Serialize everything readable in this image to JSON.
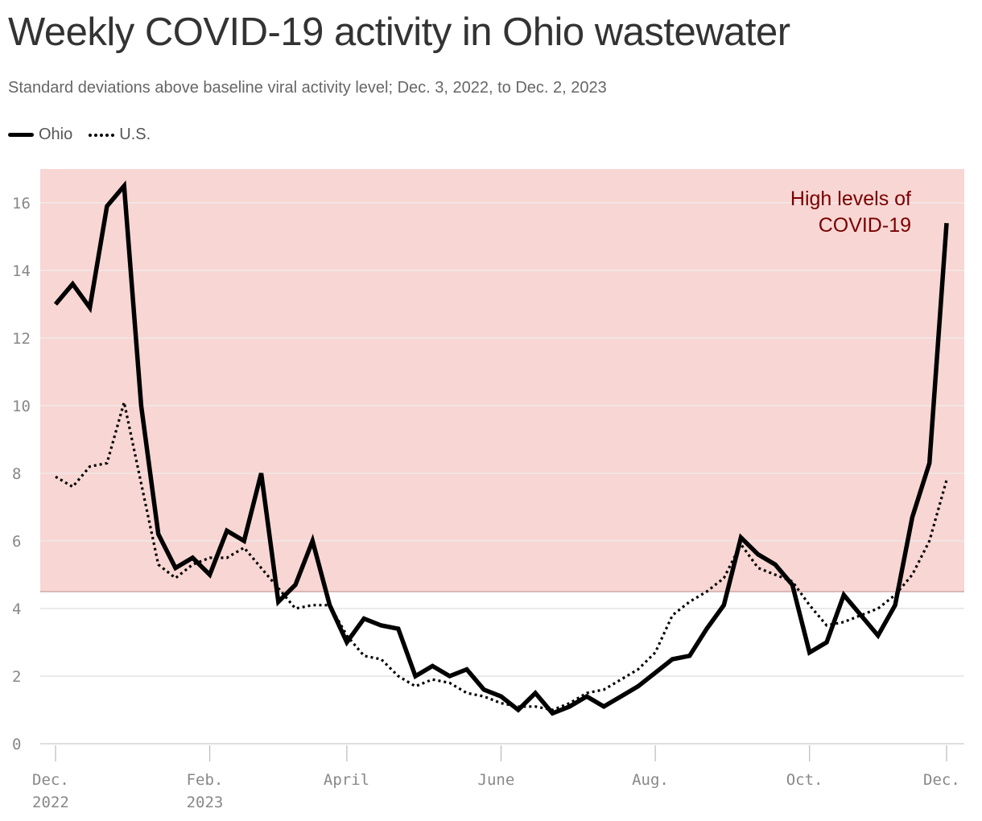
{
  "title": "Weekly COVID-19 activity in Ohio wastewater",
  "subtitle": "Standard deviations above baseline viral activity level; Dec. 3, 2022, to Dec. 2, 2023",
  "legend": [
    {
      "label": "Ohio",
      "style": "solid"
    },
    {
      "label": "U.S.",
      "style": "dotted"
    }
  ],
  "annotation": [
    "High levels of",
    "COVID-19"
  ],
  "colors": {
    "line": "#000000",
    "high_band": "#f7d6d3",
    "grid": "#dddddd",
    "annotation": "#7a0000"
  },
  "chart_data": {
    "type": "line",
    "x_unit": "week starting",
    "x": [
      "2022-12-03",
      "2022-12-10",
      "2022-12-17",
      "2022-12-24",
      "2022-12-31",
      "2023-01-07",
      "2023-01-14",
      "2023-01-21",
      "2023-01-28",
      "2023-02-04",
      "2023-02-11",
      "2023-02-18",
      "2023-02-25",
      "2023-03-04",
      "2023-03-11",
      "2023-03-18",
      "2023-03-25",
      "2023-04-01",
      "2023-04-08",
      "2023-04-15",
      "2023-04-22",
      "2023-04-29",
      "2023-05-06",
      "2023-05-13",
      "2023-05-20",
      "2023-05-27",
      "2023-06-03",
      "2023-06-10",
      "2023-06-17",
      "2023-06-24",
      "2023-07-01",
      "2023-07-08",
      "2023-07-15",
      "2023-07-22",
      "2023-07-29",
      "2023-08-05",
      "2023-08-12",
      "2023-08-19",
      "2023-08-26",
      "2023-09-02",
      "2023-09-09",
      "2023-09-16",
      "2023-09-23",
      "2023-09-30",
      "2023-10-07",
      "2023-10-14",
      "2023-10-21",
      "2023-10-28",
      "2023-11-04",
      "2023-11-11",
      "2023-11-18",
      "2023-11-25",
      "2023-12-02"
    ],
    "series": [
      {
        "name": "Ohio",
        "style": "solid",
        "values": [
          13.0,
          13.6,
          12.9,
          15.9,
          16.5,
          10.0,
          6.2,
          5.2,
          5.5,
          5.0,
          6.3,
          6.0,
          8.0,
          4.2,
          4.7,
          6.0,
          4.1,
          3.0,
          3.7,
          3.5,
          3.4,
          2.0,
          2.3,
          2.0,
          2.2,
          1.6,
          1.4,
          1.0,
          1.5,
          0.9,
          1.1,
          1.4,
          1.1,
          1.4,
          1.7,
          2.1,
          2.5,
          2.6,
          3.4,
          4.1,
          6.1,
          5.6,
          5.3,
          4.7,
          2.7,
          3.0,
          4.4,
          3.8,
          3.2,
          4.1,
          6.7,
          8.3,
          15.4
        ]
      },
      {
        "name": "U.S.",
        "style": "dotted",
        "values": [
          7.9,
          7.6,
          8.2,
          8.3,
          10.1,
          7.7,
          5.3,
          4.9,
          5.3,
          5.5,
          5.5,
          5.8,
          5.2,
          4.6,
          4.0,
          4.1,
          4.1,
          3.2,
          2.6,
          2.5,
          2.0,
          1.7,
          1.9,
          1.8,
          1.5,
          1.4,
          1.2,
          1.1,
          1.1,
          1.0,
          1.2,
          1.5,
          1.6,
          1.9,
          2.2,
          2.7,
          3.8,
          4.2,
          4.5,
          4.9,
          5.9,
          5.2,
          5.0,
          4.8,
          4.1,
          3.5,
          3.6,
          3.8,
          4.0,
          4.4,
          5.0,
          6.0,
          7.8
        ]
      }
    ],
    "x_ticks": [
      {
        "date": "2022-12-03",
        "label": [
          "Dec.",
          "2022"
        ]
      },
      {
        "date": "2023-02-04",
        "label": [
          "Feb.",
          "2023"
        ]
      },
      {
        "date": "2023-04-01",
        "label": [
          "April"
        ]
      },
      {
        "date": "2023-06-03",
        "label": [
          "June"
        ]
      },
      {
        "date": "2023-08-05",
        "label": [
          "Aug."
        ]
      },
      {
        "date": "2023-10-07",
        "label": [
          "Oct."
        ]
      },
      {
        "date": "2023-12-02",
        "label": [
          "Dec."
        ]
      }
    ],
    "y_ticks": [
      0,
      2,
      4,
      6,
      8,
      10,
      12,
      14,
      16
    ],
    "ylim": [
      0,
      17
    ],
    "high_threshold": 4.5,
    "grid": true,
    "legend_position": "top-left"
  }
}
